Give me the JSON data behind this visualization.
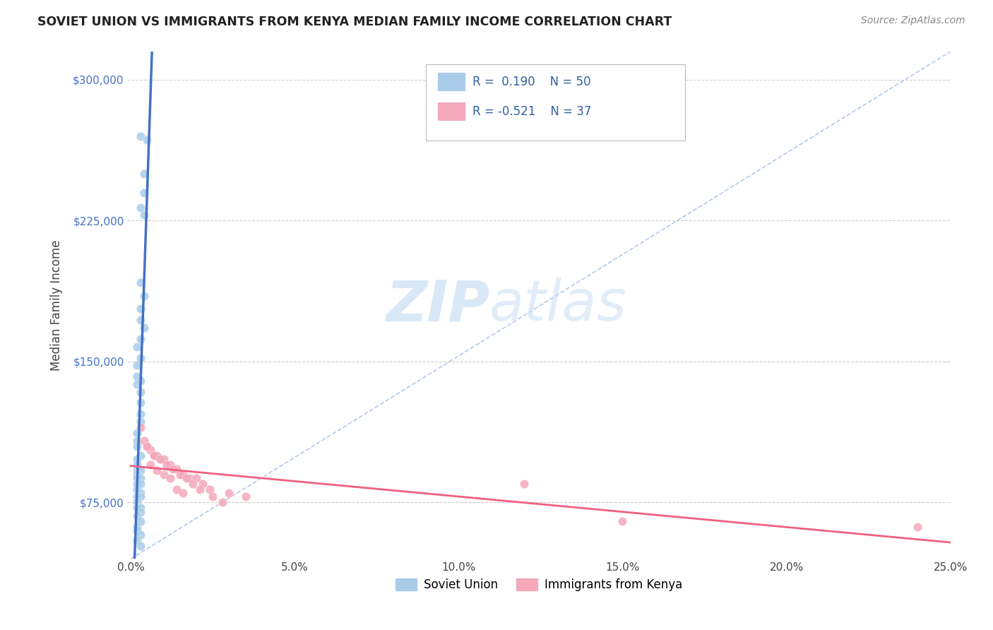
{
  "title": "SOVIET UNION VS IMMIGRANTS FROM KENYA MEDIAN FAMILY INCOME CORRELATION CHART",
  "source": "Source: ZipAtlas.com",
  "ylabel": "Median Family Income",
  "xlim": [
    -0.001,
    0.25
  ],
  "ylim": [
    45000,
    315000
  ],
  "xticks": [
    0.0,
    0.05,
    0.1,
    0.15,
    0.2,
    0.25
  ],
  "xticklabels": [
    "0.0%",
    "5.0%",
    "10.0%",
    "15.0%",
    "20.0%",
    "25.0%"
  ],
  "yticks": [
    75000,
    150000,
    225000,
    300000
  ],
  "yticklabels": [
    "$75,000",
    "$150,000",
    "$225,000",
    "$300,000"
  ],
  "watermark_zip": "ZIP",
  "watermark_atlas": "atlas",
  "color_soviet": "#A8CCEA",
  "color_kenya": "#F4A8BA",
  "color_soviet_line": "#4472C4",
  "color_kenya_line": "#F06080",
  "color_diag": "#A0BCE8",
  "soviet_scatter_x": [
    0.003,
    0.005,
    0.004,
    0.004,
    0.003,
    0.004,
    0.003,
    0.004,
    0.003,
    0.003,
    0.004,
    0.003,
    0.002,
    0.003,
    0.002,
    0.002,
    0.003,
    0.002,
    0.003,
    0.003,
    0.003,
    0.003,
    0.002,
    0.002,
    0.002,
    0.003,
    0.002,
    0.002,
    0.002,
    0.003,
    0.002,
    0.002,
    0.003,
    0.002,
    0.003,
    0.002,
    0.003,
    0.003,
    0.002,
    0.002,
    0.002,
    0.003,
    0.003,
    0.002,
    0.003,
    0.002,
    0.002,
    0.003,
    0.002,
    0.003
  ],
  "soviet_scatter_y": [
    270000,
    268000,
    250000,
    240000,
    232000,
    228000,
    192000,
    185000,
    178000,
    172000,
    168000,
    162000,
    158000,
    152000,
    148000,
    142000,
    140000,
    138000,
    134000,
    128000,
    122000,
    118000,
    112000,
    108000,
    105000,
    100000,
    98000,
    95000,
    92000,
    92000,
    90000,
    88000,
    88000,
    85000,
    85000,
    82000,
    80000,
    78000,
    78000,
    75000,
    72000,
    72000,
    70000,
    68000,
    65000,
    62000,
    60000,
    58000,
    55000,
    52000
  ],
  "kenya_scatter_x": [
    0.003,
    0.004,
    0.005,
    0.006,
    0.007,
    0.008,
    0.009,
    0.01,
    0.012,
    0.014,
    0.016,
    0.018,
    0.02,
    0.022,
    0.024,
    0.005,
    0.007,
    0.009,
    0.011,
    0.013,
    0.015,
    0.017,
    0.019,
    0.021,
    0.006,
    0.008,
    0.01,
    0.012,
    0.014,
    0.016,
    0.03,
    0.035,
    0.025,
    0.028,
    0.12,
    0.15,
    0.24
  ],
  "kenya_scatter_y": [
    115000,
    108000,
    105000,
    103000,
    100000,
    100000,
    98000,
    98000,
    95000,
    93000,
    90000,
    88000,
    88000,
    85000,
    82000,
    105000,
    100000,
    98000,
    95000,
    93000,
    90000,
    88000,
    85000,
    82000,
    95000,
    92000,
    90000,
    88000,
    82000,
    80000,
    80000,
    78000,
    78000,
    75000,
    85000,
    65000,
    62000
  ]
}
